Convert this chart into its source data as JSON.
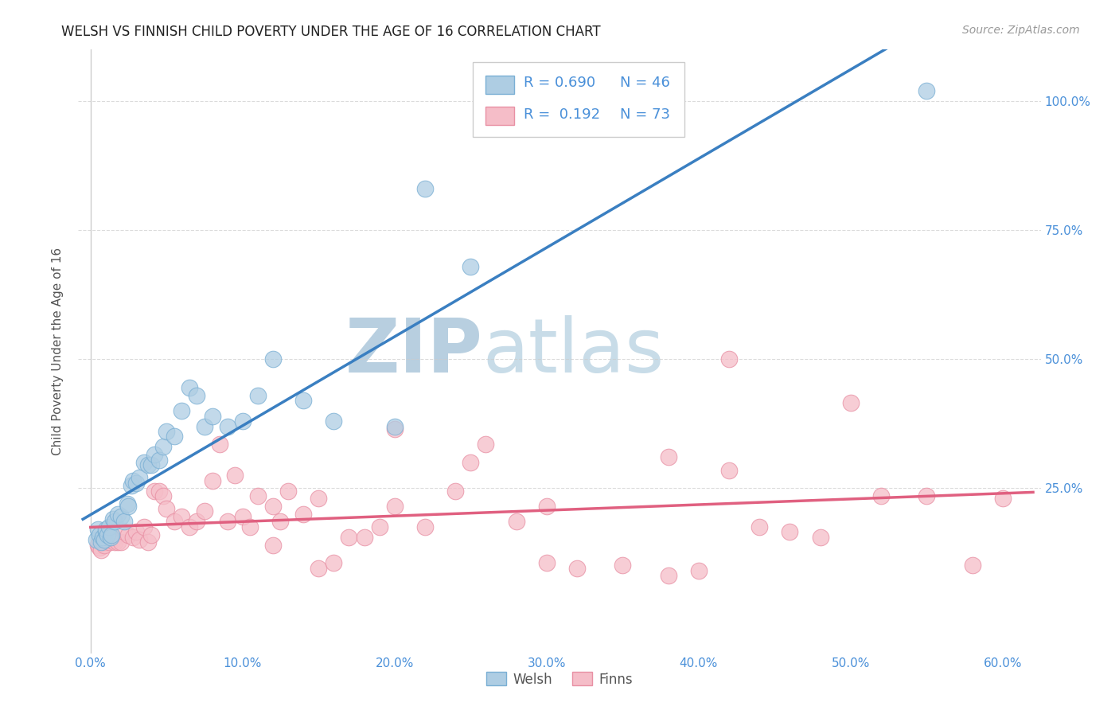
{
  "title": "WELSH VS FINNISH CHILD POVERTY UNDER THE AGE OF 16 CORRELATION CHART",
  "source": "Source: ZipAtlas.com",
  "xlabel_ticks": [
    "0.0%",
    "10.0%",
    "20.0%",
    "30.0%",
    "40.0%",
    "50.0%",
    "60.0%"
  ],
  "xlabel_vals": [
    0.0,
    0.1,
    0.2,
    0.3,
    0.4,
    0.5,
    0.6
  ],
  "ylabel_ticks_right": [
    "100.0%",
    "75.0%",
    "50.0%",
    "25.0%"
  ],
  "ylabel_vals": [
    1.0,
    0.75,
    0.5,
    0.25
  ],
  "ylabel_label": "Child Poverty Under the Age of 16",
  "welsh_R": 0.69,
  "welsh_N": 46,
  "finns_R": 0.192,
  "finns_N": 73,
  "welsh_color": "#aecde3",
  "finns_color": "#f5bdc8",
  "welsh_edge_color": "#7aafd4",
  "finns_edge_color": "#e890a4",
  "trend_welsh_color": "#3a7fc1",
  "trend_finns_color": "#e06080",
  "legend_text_color": "#4a90d9",
  "watermark_color_zip": "#c8d8e8",
  "watermark_color_atlas": "#a0c0d8",
  "background_color": "#ffffff",
  "grid_color": "#cccccc",
  "tick_color": "#4a90d9",
  "welsh_scatter_x": [
    0.004,
    0.005,
    0.006,
    0.007,
    0.008,
    0.009,
    0.01,
    0.01,
    0.011,
    0.012,
    0.013,
    0.014,
    0.015,
    0.016,
    0.018,
    0.02,
    0.022,
    0.024,
    0.025,
    0.027,
    0.028,
    0.03,
    0.032,
    0.035,
    0.038,
    0.04,
    0.042,
    0.045,
    0.048,
    0.05,
    0.055,
    0.06,
    0.065,
    0.07,
    0.075,
    0.08,
    0.09,
    0.1,
    0.11,
    0.12,
    0.14,
    0.16,
    0.2,
    0.22,
    0.25,
    0.55
  ],
  "welsh_scatter_y": [
    0.15,
    0.17,
    0.16,
    0.145,
    0.155,
    0.15,
    0.165,
    0.17,
    0.16,
    0.175,
    0.155,
    0.16,
    0.19,
    0.185,
    0.2,
    0.195,
    0.185,
    0.22,
    0.215,
    0.255,
    0.265,
    0.26,
    0.27,
    0.3,
    0.295,
    0.295,
    0.315,
    0.305,
    0.33,
    0.36,
    0.35,
    0.4,
    0.445,
    0.43,
    0.37,
    0.39,
    0.37,
    0.38,
    0.43,
    0.5,
    0.42,
    0.38,
    0.37,
    0.83,
    0.68,
    1.02
  ],
  "finns_scatter_x": [
    0.005,
    0.006,
    0.007,
    0.008,
    0.009,
    0.01,
    0.011,
    0.012,
    0.013,
    0.014,
    0.015,
    0.016,
    0.018,
    0.02,
    0.022,
    0.025,
    0.028,
    0.03,
    0.032,
    0.035,
    0.038,
    0.04,
    0.042,
    0.045,
    0.048,
    0.05,
    0.055,
    0.06,
    0.065,
    0.07,
    0.075,
    0.08,
    0.085,
    0.09,
    0.095,
    0.1,
    0.105,
    0.11,
    0.12,
    0.125,
    0.13,
    0.14,
    0.15,
    0.16,
    0.17,
    0.18,
    0.19,
    0.2,
    0.22,
    0.24,
    0.26,
    0.28,
    0.3,
    0.32,
    0.35,
    0.38,
    0.4,
    0.42,
    0.44,
    0.46,
    0.48,
    0.5,
    0.52,
    0.55,
    0.58,
    0.6,
    0.38,
    0.42,
    0.3,
    0.25,
    0.2,
    0.15,
    0.12
  ],
  "finns_scatter_y": [
    0.14,
    0.135,
    0.13,
    0.145,
    0.14,
    0.15,
    0.155,
    0.145,
    0.15,
    0.155,
    0.15,
    0.145,
    0.145,
    0.145,
    0.165,
    0.16,
    0.155,
    0.165,
    0.15,
    0.175,
    0.145,
    0.16,
    0.245,
    0.245,
    0.235,
    0.21,
    0.185,
    0.195,
    0.175,
    0.185,
    0.205,
    0.265,
    0.335,
    0.185,
    0.275,
    0.195,
    0.175,
    0.235,
    0.215,
    0.185,
    0.245,
    0.2,
    0.095,
    0.105,
    0.155,
    0.155,
    0.175,
    0.215,
    0.175,
    0.245,
    0.335,
    0.185,
    0.105,
    0.095,
    0.1,
    0.08,
    0.09,
    0.285,
    0.175,
    0.165,
    0.155,
    0.415,
    0.235,
    0.235,
    0.1,
    0.23,
    0.31,
    0.5,
    0.215,
    0.3,
    0.365,
    0.23,
    0.14
  ]
}
